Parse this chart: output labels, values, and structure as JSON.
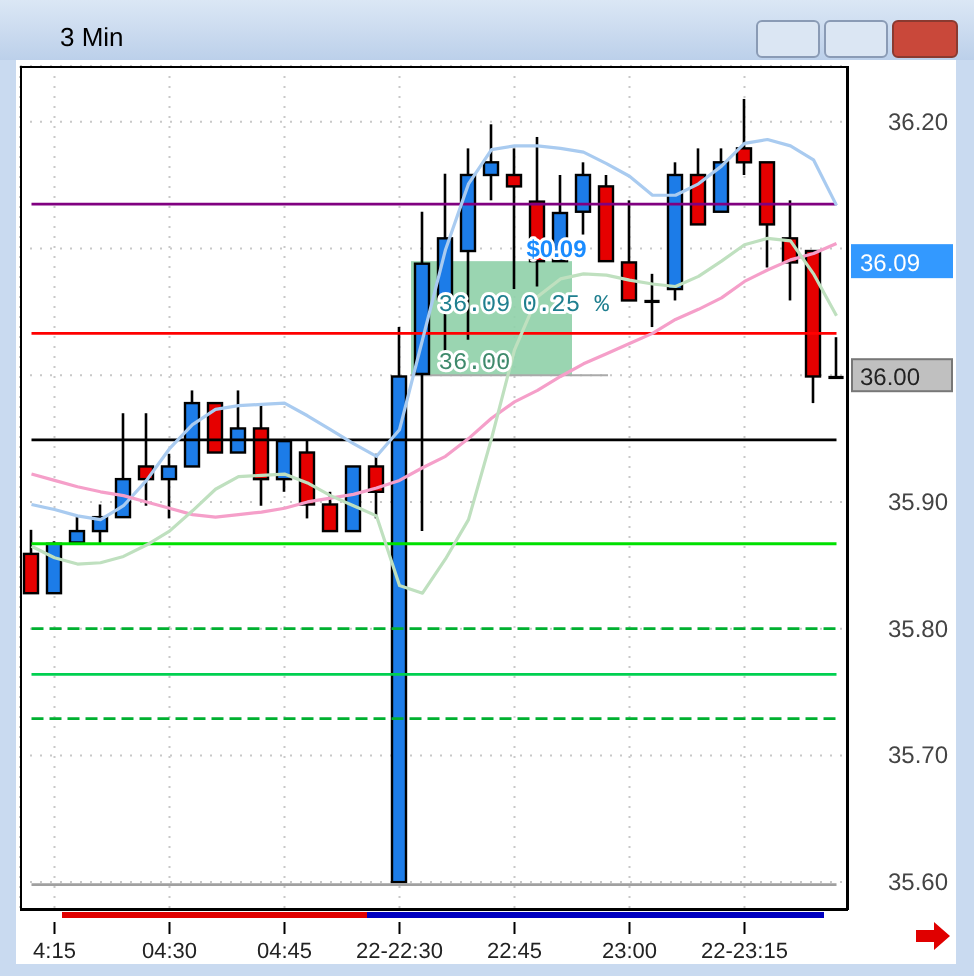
{
  "chart_data": {
    "type": "candlestick",
    "title": "3 Min",
    "categories": [
      null,
      "4:15",
      null,
      null,
      null,
      null,
      "04:30",
      null,
      null,
      null,
      null,
      "04:45",
      null,
      null,
      null,
      null,
      "22-22:30",
      null,
      null,
      null,
      null,
      "22:45",
      null,
      null,
      null,
      null,
      "23:00",
      null,
      null,
      null,
      null,
      "22-23:15",
      null,
      null,
      null,
      null
    ],
    "ohlc": [
      [
        35.859,
        35.878,
        35.828,
        35.828
      ],
      [
        35.828,
        35.869,
        35.828,
        35.867
      ],
      [
        35.868,
        35.888,
        35.867,
        35.877
      ],
      [
        35.877,
        35.898,
        35.867,
        35.888
      ],
      [
        35.888,
        35.97,
        35.888,
        35.918
      ],
      [
        35.928,
        35.97,
        35.897,
        35.918
      ],
      [
        35.918,
        35.938,
        35.887,
        35.928
      ],
      [
        35.928,
        35.988,
        35.928,
        35.978
      ],
      [
        35.978,
        35.978,
        35.939,
        35.939
      ],
      [
        35.939,
        35.988,
        35.939,
        35.958
      ],
      [
        35.958,
        35.978,
        35.897,
        35.918
      ],
      [
        35.918,
        35.948,
        35.908,
        35.948
      ],
      [
        35.939,
        35.949,
        35.887,
        35.898
      ],
      [
        35.898,
        35.908,
        35.877,
        35.877
      ],
      [
        35.877,
        35.928,
        35.877,
        35.928
      ],
      [
        35.928,
        35.938,
        35.887,
        35.908
      ],
      [
        35.6,
        36.038,
        35.6,
        35.999
      ],
      [
        36.001,
        36.129,
        35.877,
        36.088
      ],
      [
        36.06,
        36.159,
        36.017,
        36.108
      ],
      [
        36.098,
        36.179,
        36.028,
        36.158
      ],
      [
        36.158,
        36.198,
        36.138,
        36.168
      ],
      [
        36.158,
        36.179,
        36.068,
        36.149
      ],
      [
        36.137,
        36.188,
        36.07,
        36.09
      ],
      [
        36.09,
        36.158,
        36.09,
        36.128
      ],
      [
        36.129,
        36.168,
        36.111,
        36.158
      ],
      [
        36.149,
        36.158,
        36.09,
        36.09
      ],
      [
        36.089,
        36.138,
        36.059,
        36.059
      ],
      [
        36.059,
        36.08,
        36.038,
        36.059
      ],
      [
        36.068,
        36.168,
        36.059,
        36.158
      ],
      [
        36.158,
        36.179,
        36.119,
        36.119
      ],
      [
        36.129,
        36.179,
        36.129,
        36.168
      ],
      [
        36.179,
        36.218,
        36.158,
        36.168
      ],
      [
        36.168,
        36.168,
        36.085,
        36.119
      ],
      [
        36.108,
        36.138,
        36.059,
        36.089
      ],
      [
        36.098,
        36.098,
        35.978,
        35.999
      ],
      [
        35.999,
        36.03,
        35.999,
        35.999
      ]
    ],
    "colors": [
      "#e60000",
      "#1c7ce8",
      "#1c7ce8",
      "#1c7ce8",
      "#1c7ce8",
      "#e60000",
      "#1c7ce8",
      "#1c7ce8",
      "#e60000",
      "#1c7ce8",
      "#e60000",
      "#1c7ce8",
      "#e60000",
      "#e60000",
      "#1c7ce8",
      "#e60000",
      "#1c7ce8",
      "#1c7ce8",
      "#1c7ce8",
      "#1c7ce8",
      "#1c7ce8",
      "#e60000",
      "#e60000",
      "#1c7ce8",
      "#1c7ce8",
      "#e60000",
      "#e60000",
      "#000000",
      "#1c7ce8",
      "#e60000",
      "#1c7ce8",
      "#e60000",
      "#e60000",
      "#e60000",
      "#e60000",
      "#000000"
    ],
    "series": [
      {
        "type": "line",
        "color": "#a9cbf0",
        "values": [
          35.898,
          35.894,
          35.889,
          35.886,
          35.897,
          35.917,
          35.942,
          35.961,
          35.973,
          35.976,
          35.977,
          35.978,
          35.968,
          35.957,
          35.946,
          35.936,
          35.957,
          36.028,
          36.099,
          36.151,
          36.178,
          36.181,
          36.181,
          36.179,
          36.176,
          36.167,
          36.157,
          36.142,
          36.142,
          36.151,
          36.165,
          36.183,
          36.186,
          36.181,
          36.17,
          36.134
        ]
      },
      {
        "type": "line",
        "color": "#f59fc9",
        "values": [
          35.922,
          35.917,
          35.912,
          35.908,
          35.905,
          35.9,
          35.895,
          35.89,
          35.888,
          35.89,
          35.892,
          35.895,
          35.9,
          35.903,
          35.906,
          35.911,
          35.917,
          35.927,
          35.936,
          35.95,
          35.966,
          35.979,
          35.988,
          35.999,
          36.009,
          36.017,
          36.025,
          36.033,
          36.044,
          36.052,
          36.061,
          36.074,
          36.083,
          36.091,
          36.096,
          36.104
        ]
      },
      {
        "type": "line",
        "color": "#bfe0bf",
        "values": [
          35.865,
          35.856,
          35.851,
          35.852,
          35.857,
          35.866,
          35.877,
          35.893,
          35.91,
          35.92,
          35.921,
          35.922,
          35.915,
          35.905,
          35.897,
          35.889,
          35.834,
          35.828,
          35.855,
          35.886,
          35.95,
          36.02,
          36.062,
          36.076,
          36.08,
          36.079,
          36.075,
          36.072,
          36.07,
          36.078,
          36.09,
          36.103,
          36.108,
          36.106,
          36.08,
          36.047
        ]
      }
    ],
    "ylim": [
      35.578,
      36.244
    ],
    "yticks": [
      {
        "value": 35.6,
        "label": "35.60"
      },
      {
        "value": 35.7,
        "label": "35.70"
      },
      {
        "value": 35.8,
        "label": "35.80"
      },
      {
        "value": 35.9,
        "label": "35.90"
      },
      {
        "value": 36.0,
        "label": null
      },
      {
        "value": 36.1,
        "label": null
      },
      {
        "value": 36.2,
        "label": "36.20"
      }
    ],
    "bands": [
      {
        "axis": "y",
        "from": 36.0,
        "to": 36.09,
        "color": "#8fd0a8"
      }
    ],
    "grid": true,
    "marker": "none",
    "line_style": "solid",
    "ref_lines": [
      {
        "axis": "y",
        "value": 36.135,
        "color": "#800080",
        "line_style": "solid"
      },
      {
        "axis": "y",
        "value": 36.033,
        "color": "#ff0000",
        "line_style": "solid"
      },
      {
        "axis": "y",
        "value": 35.949,
        "color": "#000000",
        "line_style": "solid"
      },
      {
        "axis": "y",
        "value": 35.867,
        "color": "#00e000",
        "line_style": "solid"
      },
      {
        "axis": "y",
        "value": 35.8,
        "color": "#00b030",
        "line_style": "dashed"
      },
      {
        "axis": "y",
        "value": 35.764,
        "color": "#00d050",
        "line_style": "solid"
      },
      {
        "axis": "y",
        "value": 35.729,
        "color": "#00b030",
        "line_style": "dashed"
      },
      {
        "axis": "y",
        "value": 35.598,
        "color": "#a0a0a0",
        "line_style": "solid"
      }
    ],
    "annotations": [
      "36.09",
      "36.00",
      "$0.09",
      "0.25 %",
      "36.09",
      "36.00"
    ]
  }
}
